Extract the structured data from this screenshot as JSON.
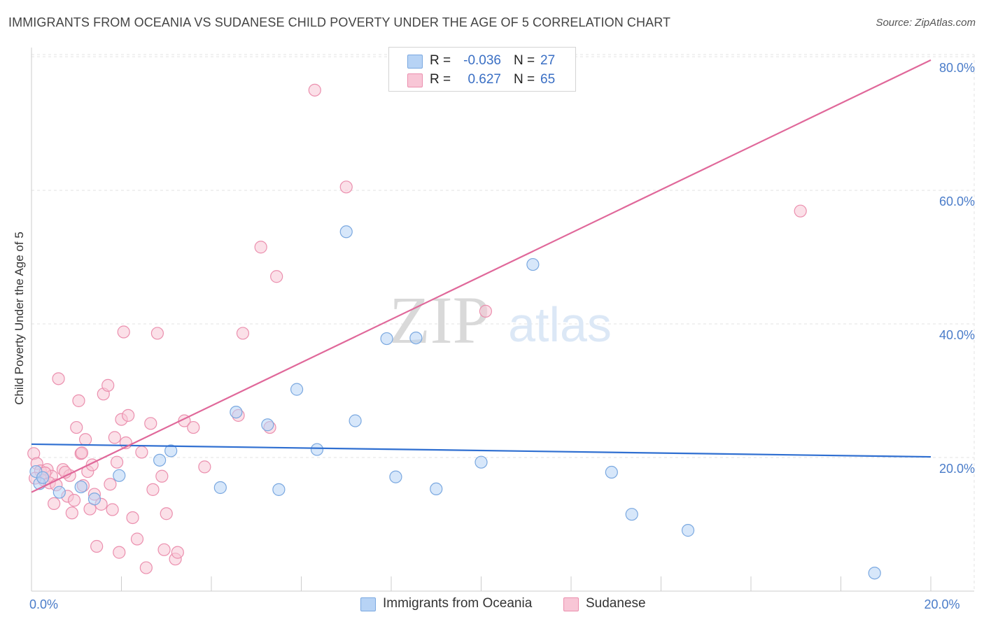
{
  "header": {
    "title": "IMMIGRANTS FROM OCEANIA VS SUDANESE CHILD POVERTY UNDER THE AGE OF 5 CORRELATION CHART",
    "source": "Source: ZipAtlas.com"
  },
  "watermark": {
    "zip": "ZIP",
    "atlas": "atlas"
  },
  "legend": {
    "r_label": "R =",
    "n_label": "N =",
    "entries": [
      {
        "name": "Immigrants from Oceania",
        "r": "-0.036",
        "n": "27"
      },
      {
        "name": "Sudanese",
        "r": "0.627",
        "n": "65"
      }
    ]
  },
  "colors": {
    "blue_fill": "#b7d3f5",
    "blue_stroke": "#7aa8e0",
    "blue_line": "#2f6fd1",
    "pink_fill": "#f8c6d6",
    "pink_stroke": "#eb8fae",
    "pink_line": "#e0689a",
    "tick_text": "#4a7cc9"
  },
  "chart_data": {
    "type": "scatter",
    "title": "IMMIGRANTS FROM OCEANIA VS SUDANESE CHILD POVERTY UNDER THE AGE OF 5 CORRELATION CHART",
    "xlabel": "",
    "ylabel": "Child Poverty Under the Age of 5",
    "xlim": [
      0,
      20
    ],
    "ylim": [
      0,
      82
    ],
    "x_ticks": [
      0,
      2,
      4,
      6,
      8,
      10,
      12,
      14,
      16,
      18,
      20
    ],
    "x_tick_labels": [
      {
        "value": 0,
        "label": "0.0%"
      },
      {
        "value": 20,
        "label": "20.0%"
      }
    ],
    "y_ticks": [
      {
        "value": 20,
        "label": "20.0%"
      },
      {
        "value": 40,
        "label": "40.0%"
      },
      {
        "value": 60,
        "label": "60.0%"
      },
      {
        "value": 80,
        "label": "80.0%"
      }
    ],
    "grid": true,
    "legend_position": "top-center",
    "series": [
      {
        "name": "Immigrants from Oceania",
        "color": "blue",
        "trend": {
          "x": [
            0,
            20
          ],
          "y": [
            22.0,
            20.1
          ]
        },
        "points": [
          {
            "x": 0.1,
            "y": 17.9
          },
          {
            "x": 0.18,
            "y": 16.1
          },
          {
            "x": 0.25,
            "y": 17.0
          },
          {
            "x": 0.62,
            "y": 14.8
          },
          {
            "x": 1.1,
            "y": 15.6
          },
          {
            "x": 1.4,
            "y": 13.8
          },
          {
            "x": 1.95,
            "y": 17.3
          },
          {
            "x": 2.85,
            "y": 19.6
          },
          {
            "x": 4.2,
            "y": 15.5
          },
          {
            "x": 3.1,
            "y": 21.0
          },
          {
            "x": 4.55,
            "y": 26.8
          },
          {
            "x": 5.25,
            "y": 24.9
          },
          {
            "x": 5.5,
            "y": 15.2
          },
          {
            "x": 5.9,
            "y": 30.2
          },
          {
            "x": 6.35,
            "y": 21.2
          },
          {
            "x": 7.0,
            "y": 53.8
          },
          {
            "x": 7.2,
            "y": 25.5
          },
          {
            "x": 7.9,
            "y": 37.8
          },
          {
            "x": 8.1,
            "y": 17.1
          },
          {
            "x": 8.55,
            "y": 37.9
          },
          {
            "x": 9.0,
            "y": 15.3
          },
          {
            "x": 10.0,
            "y": 19.3
          },
          {
            "x": 11.15,
            "y": 48.9
          },
          {
            "x": 12.9,
            "y": 17.8
          },
          {
            "x": 13.35,
            "y": 11.5
          },
          {
            "x": 14.6,
            "y": 9.1
          },
          {
            "x": 18.75,
            "y": 2.7
          }
        ]
      },
      {
        "name": "Sudanese",
        "color": "pink",
        "trend": {
          "x": [
            0,
            20
          ],
          "y": [
            14.8,
            79.5
          ]
        },
        "points": [
          {
            "x": 0.05,
            "y": 20.6
          },
          {
            "x": 0.12,
            "y": 19.1
          },
          {
            "x": 0.2,
            "y": 18.0
          },
          {
            "x": 0.28,
            "y": 16.6
          },
          {
            "x": 0.35,
            "y": 18.2
          },
          {
            "x": 0.45,
            "y": 17.2
          },
          {
            "x": 0.5,
            "y": 13.1
          },
          {
            "x": 0.6,
            "y": 31.8
          },
          {
            "x": 0.7,
            "y": 18.2
          },
          {
            "x": 0.8,
            "y": 14.2
          },
          {
            "x": 0.85,
            "y": 17.3
          },
          {
            "x": 0.9,
            "y": 11.7
          },
          {
            "x": 0.95,
            "y": 13.6
          },
          {
            "x": 1.0,
            "y": 24.5
          },
          {
            "x": 1.05,
            "y": 28.5
          },
          {
            "x": 1.1,
            "y": 20.6
          },
          {
            "x": 1.15,
            "y": 15.8
          },
          {
            "x": 1.2,
            "y": 22.7
          },
          {
            "x": 1.25,
            "y": 17.9
          },
          {
            "x": 1.3,
            "y": 12.3
          },
          {
            "x": 1.35,
            "y": 18.9
          },
          {
            "x": 1.45,
            "y": 6.7
          },
          {
            "x": 1.55,
            "y": 13.0
          },
          {
            "x": 1.6,
            "y": 29.5
          },
          {
            "x": 1.7,
            "y": 30.8
          },
          {
            "x": 1.75,
            "y": 16.0
          },
          {
            "x": 1.8,
            "y": 12.2
          },
          {
            "x": 1.85,
            "y": 23.0
          },
          {
            "x": 1.9,
            "y": 19.3
          },
          {
            "x": 1.95,
            "y": 5.8
          },
          {
            "x": 2.0,
            "y": 25.7
          },
          {
            "x": 2.05,
            "y": 38.8
          },
          {
            "x": 2.1,
            "y": 22.2
          },
          {
            "x": 2.15,
            "y": 26.3
          },
          {
            "x": 2.25,
            "y": 11.0
          },
          {
            "x": 2.35,
            "y": 7.8
          },
          {
            "x": 2.45,
            "y": 20.8
          },
          {
            "x": 2.55,
            "y": 3.5
          },
          {
            "x": 2.65,
            "y": 25.1
          },
          {
            "x": 2.7,
            "y": 15.2
          },
          {
            "x": 2.8,
            "y": 38.6
          },
          {
            "x": 2.9,
            "y": 17.2
          },
          {
            "x": 3.0,
            "y": 11.6
          },
          {
            "x": 3.2,
            "y": 4.8
          },
          {
            "x": 3.25,
            "y": 5.8
          },
          {
            "x": 3.4,
            "y": 25.5
          },
          {
            "x": 3.6,
            "y": 24.5
          },
          {
            "x": 3.85,
            "y": 18.6
          },
          {
            "x": 4.6,
            "y": 26.3
          },
          {
            "x": 4.7,
            "y": 38.6
          },
          {
            "x": 5.1,
            "y": 51.5
          },
          {
            "x": 5.3,
            "y": 24.5
          },
          {
            "x": 5.45,
            "y": 47.1
          },
          {
            "x": 6.3,
            "y": 75.0
          },
          {
            "x": 7.0,
            "y": 60.5
          },
          {
            "x": 10.1,
            "y": 41.9
          },
          {
            "x": 17.1,
            "y": 56.9
          },
          {
            "x": 0.08,
            "y": 16.9
          },
          {
            "x": 0.4,
            "y": 16.2
          },
          {
            "x": 0.55,
            "y": 15.9
          },
          {
            "x": 0.75,
            "y": 17.8
          },
          {
            "x": 1.12,
            "y": 20.7
          },
          {
            "x": 1.4,
            "y": 14.5
          },
          {
            "x": 2.95,
            "y": 6.2
          },
          {
            "x": 0.3,
            "y": 17.7
          }
        ]
      }
    ]
  }
}
